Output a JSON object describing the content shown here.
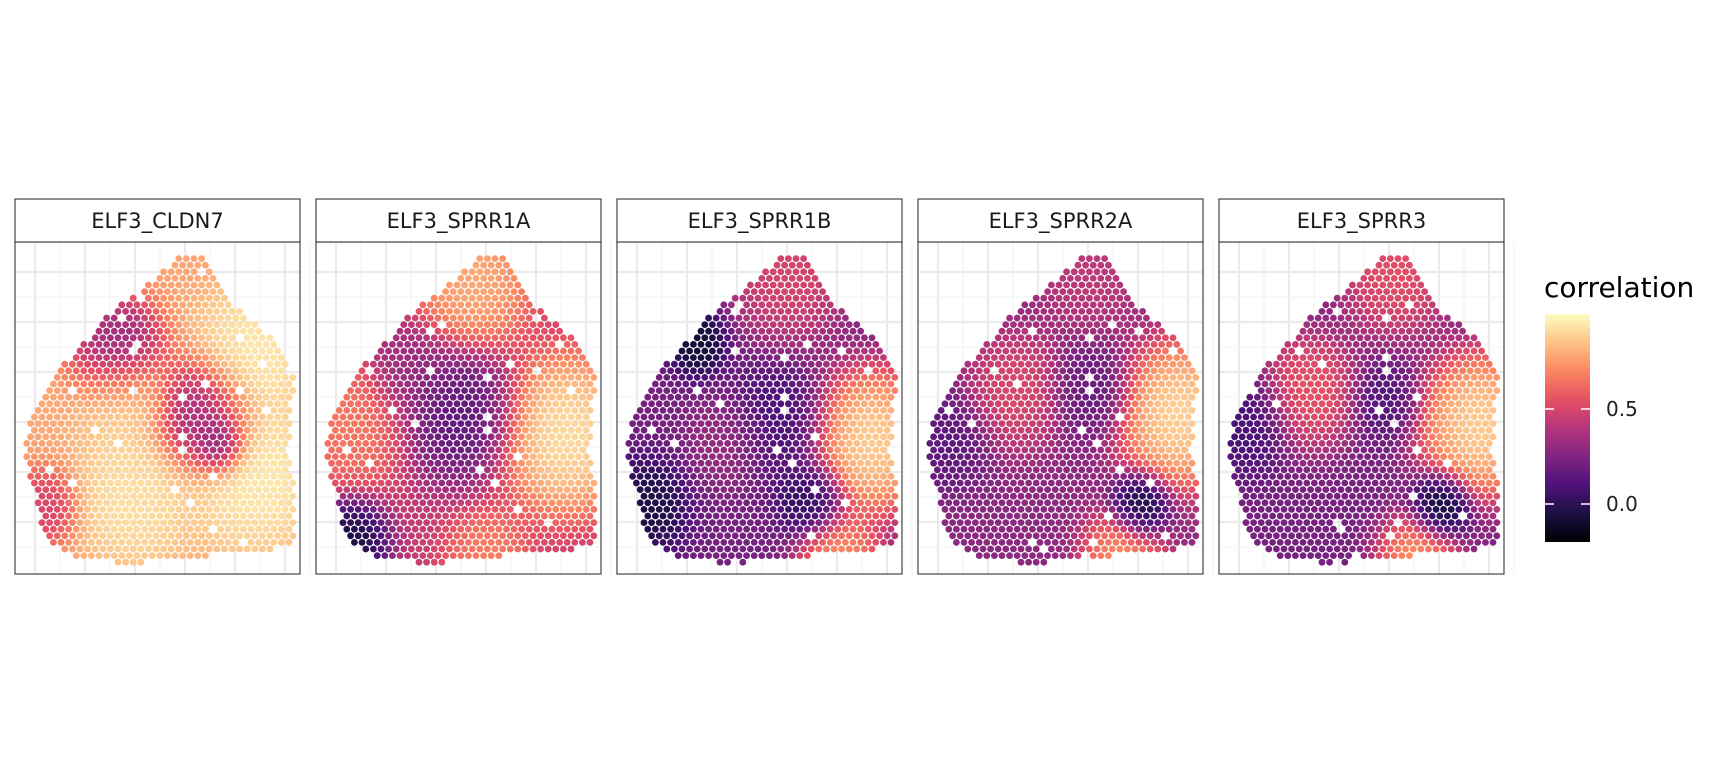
{
  "chart_data": {
    "type": "scatter",
    "description_layout": "facet_wrap of spatial spot maps (hexagonal Visium-like grid), colour = correlation",
    "grid": true,
    "legend_placement": "right",
    "colorscale": {
      "name": "magma",
      "stops": [
        "#000004",
        "#1c1044",
        "#4f127b",
        "#812581",
        "#b5367a",
        "#e55064",
        "#fb8761",
        "#fec287",
        "#fcfdbf"
      ],
      "range": [
        -0.2,
        1.0
      ]
    },
    "legend": {
      "title": "correlation",
      "ticks": [
        {
          "value": 0.5,
          "label": "0.5"
        },
        {
          "value": 0.0,
          "label": "0.0"
        }
      ]
    },
    "panels": [
      {
        "title": "ELF3_CLDN7",
        "base": 0.78,
        "blobs": [
          {
            "x": 0.82,
            "y": 0.35,
            "v": 0.98,
            "r": 0.14
          },
          {
            "x": 0.84,
            "y": 0.7,
            "v": 0.98,
            "r": 0.16
          },
          {
            "x": 0.36,
            "y": 0.33,
            "v": 0.18,
            "r": 0.11
          },
          {
            "x": 0.66,
            "y": 0.52,
            "v": 0.22,
            "r": 0.12
          },
          {
            "x": 0.72,
            "y": 0.61,
            "v": 0.05,
            "r": 0.06
          },
          {
            "x": 0.42,
            "y": 0.77,
            "v": 0.95,
            "r": 0.14
          },
          {
            "x": 0.1,
            "y": 0.8,
            "v": 0.45,
            "r": 0.08
          },
          {
            "x": 0.38,
            "y": 0.47,
            "v": 0.92,
            "r": 0.12
          }
        ]
      },
      {
        "title": "ELF3_SPRR1A",
        "base": 0.45,
        "blobs": [
          {
            "x": 0.55,
            "y": 0.12,
            "v": 0.85,
            "r": 0.14
          },
          {
            "x": 0.5,
            "y": 0.52,
            "v": 0.1,
            "r": 0.14
          },
          {
            "x": 0.88,
            "y": 0.58,
            "v": 1.0,
            "r": 0.16
          },
          {
            "x": 0.12,
            "y": 0.55,
            "v": 0.7,
            "r": 0.14
          },
          {
            "x": 0.12,
            "y": 0.9,
            "v": -0.15,
            "r": 0.09
          },
          {
            "x": 0.6,
            "y": 0.95,
            "v": 0.72,
            "r": 0.1
          },
          {
            "x": 0.32,
            "y": 0.38,
            "v": 0.3,
            "r": 0.1
          }
        ]
      },
      {
        "title": "ELF3_SPRR1B",
        "base": 0.22,
        "blobs": [
          {
            "x": 0.6,
            "y": 0.1,
            "v": 0.55,
            "r": 0.14
          },
          {
            "x": 0.28,
            "y": 0.3,
            "v": -0.15,
            "r": 0.07
          },
          {
            "x": 0.55,
            "y": 0.55,
            "v": 0.05,
            "r": 0.12
          },
          {
            "x": 0.9,
            "y": 0.6,
            "v": 1.0,
            "r": 0.15
          },
          {
            "x": 0.1,
            "y": 0.8,
            "v": -0.1,
            "r": 0.1
          },
          {
            "x": 0.68,
            "y": 0.78,
            "v": -0.05,
            "r": 0.08
          },
          {
            "x": 0.78,
            "y": 0.95,
            "v": 0.8,
            "r": 0.1
          },
          {
            "x": 0.4,
            "y": 0.6,
            "v": 0.35,
            "r": 0.1
          }
        ]
      },
      {
        "title": "ELF3_SPRR2A",
        "base": 0.28,
        "blobs": [
          {
            "x": 0.6,
            "y": 0.1,
            "v": 0.45,
            "r": 0.12
          },
          {
            "x": 0.92,
            "y": 0.52,
            "v": 1.0,
            "r": 0.15
          },
          {
            "x": 0.78,
            "y": 0.8,
            "v": -0.15,
            "r": 0.07
          },
          {
            "x": 0.35,
            "y": 0.45,
            "v": 0.55,
            "r": 0.12
          },
          {
            "x": 0.6,
            "y": 0.45,
            "v": 0.15,
            "r": 0.1
          },
          {
            "x": 0.72,
            "y": 0.95,
            "v": 0.8,
            "r": 0.1
          },
          {
            "x": 0.1,
            "y": 0.6,
            "v": 0.12,
            "r": 0.1
          }
        ]
      },
      {
        "title": "ELF3_SPRR3",
        "base": 0.22,
        "blobs": [
          {
            "x": 0.62,
            "y": 0.1,
            "v": 0.6,
            "r": 0.13
          },
          {
            "x": 0.92,
            "y": 0.55,
            "v": 1.0,
            "r": 0.15
          },
          {
            "x": 0.78,
            "y": 0.8,
            "v": -0.18,
            "r": 0.07
          },
          {
            "x": 0.32,
            "y": 0.45,
            "v": 0.62,
            "r": 0.12
          },
          {
            "x": 0.58,
            "y": 0.48,
            "v": 0.1,
            "r": 0.08
          },
          {
            "x": 0.7,
            "y": 0.96,
            "v": 0.82,
            "r": 0.1
          },
          {
            "x": 0.1,
            "y": 0.55,
            "v": 0.05,
            "r": 0.1
          }
        ]
      }
    ]
  }
}
